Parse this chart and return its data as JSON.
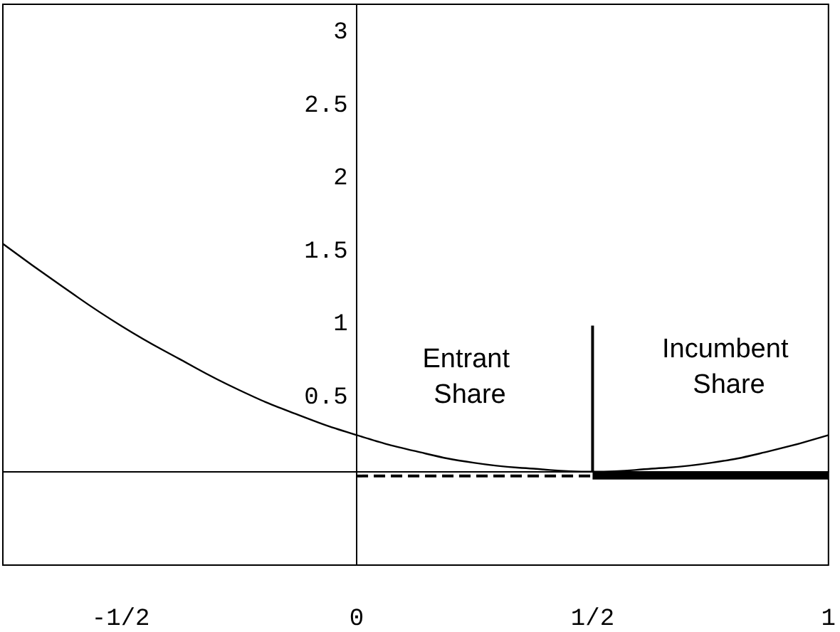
{
  "chart_data": {
    "type": "line",
    "xlim": [
      -0.75,
      1
    ],
    "ylim": [
      -0.64,
      3.2
    ],
    "xticks": [
      {
        "value": -0.5,
        "label": "-1/2"
      },
      0,
      {
        "value": 0.5,
        "label": "1/2"
      },
      1
    ],
    "yticks": [
      0.5,
      1,
      1.5,
      2,
      2.5,
      3
    ],
    "grid": false,
    "marker": "none",
    "series": [
      {
        "color": "#000000",
        "x": [
          -0.75,
          -0.625,
          -0.5,
          -0.375,
          -0.25,
          -0.125,
          0,
          0.125,
          0.25,
          0.375,
          0.5,
          0.625,
          0.75,
          0.875,
          1
        ],
        "values": [
          1.56,
          1.27,
          1,
          0.77,
          0.56,
          0.39,
          0.25,
          0.14,
          0.06,
          0.02,
          0,
          0.02,
          0.06,
          0.14,
          0.25
        ]
      },
      {
        "color": "#000000",
        "x": [
          0.5,
          0.5
        ],
        "values": [
          0,
          1
        ]
      },
      {
        "color": "#000000",
        "x": [
          0,
          0.5
        ],
        "values": [
          -0.03,
          -0.03
        ],
        "line_style": "dashed"
      },
      {
        "color": "#000000",
        "x": [
          0.5,
          1
        ],
        "values": [
          -0.03,
          -0.03
        ]
      }
    ],
    "annotations": [
      "Entrant Share",
      "Incumbent Share"
    ]
  }
}
